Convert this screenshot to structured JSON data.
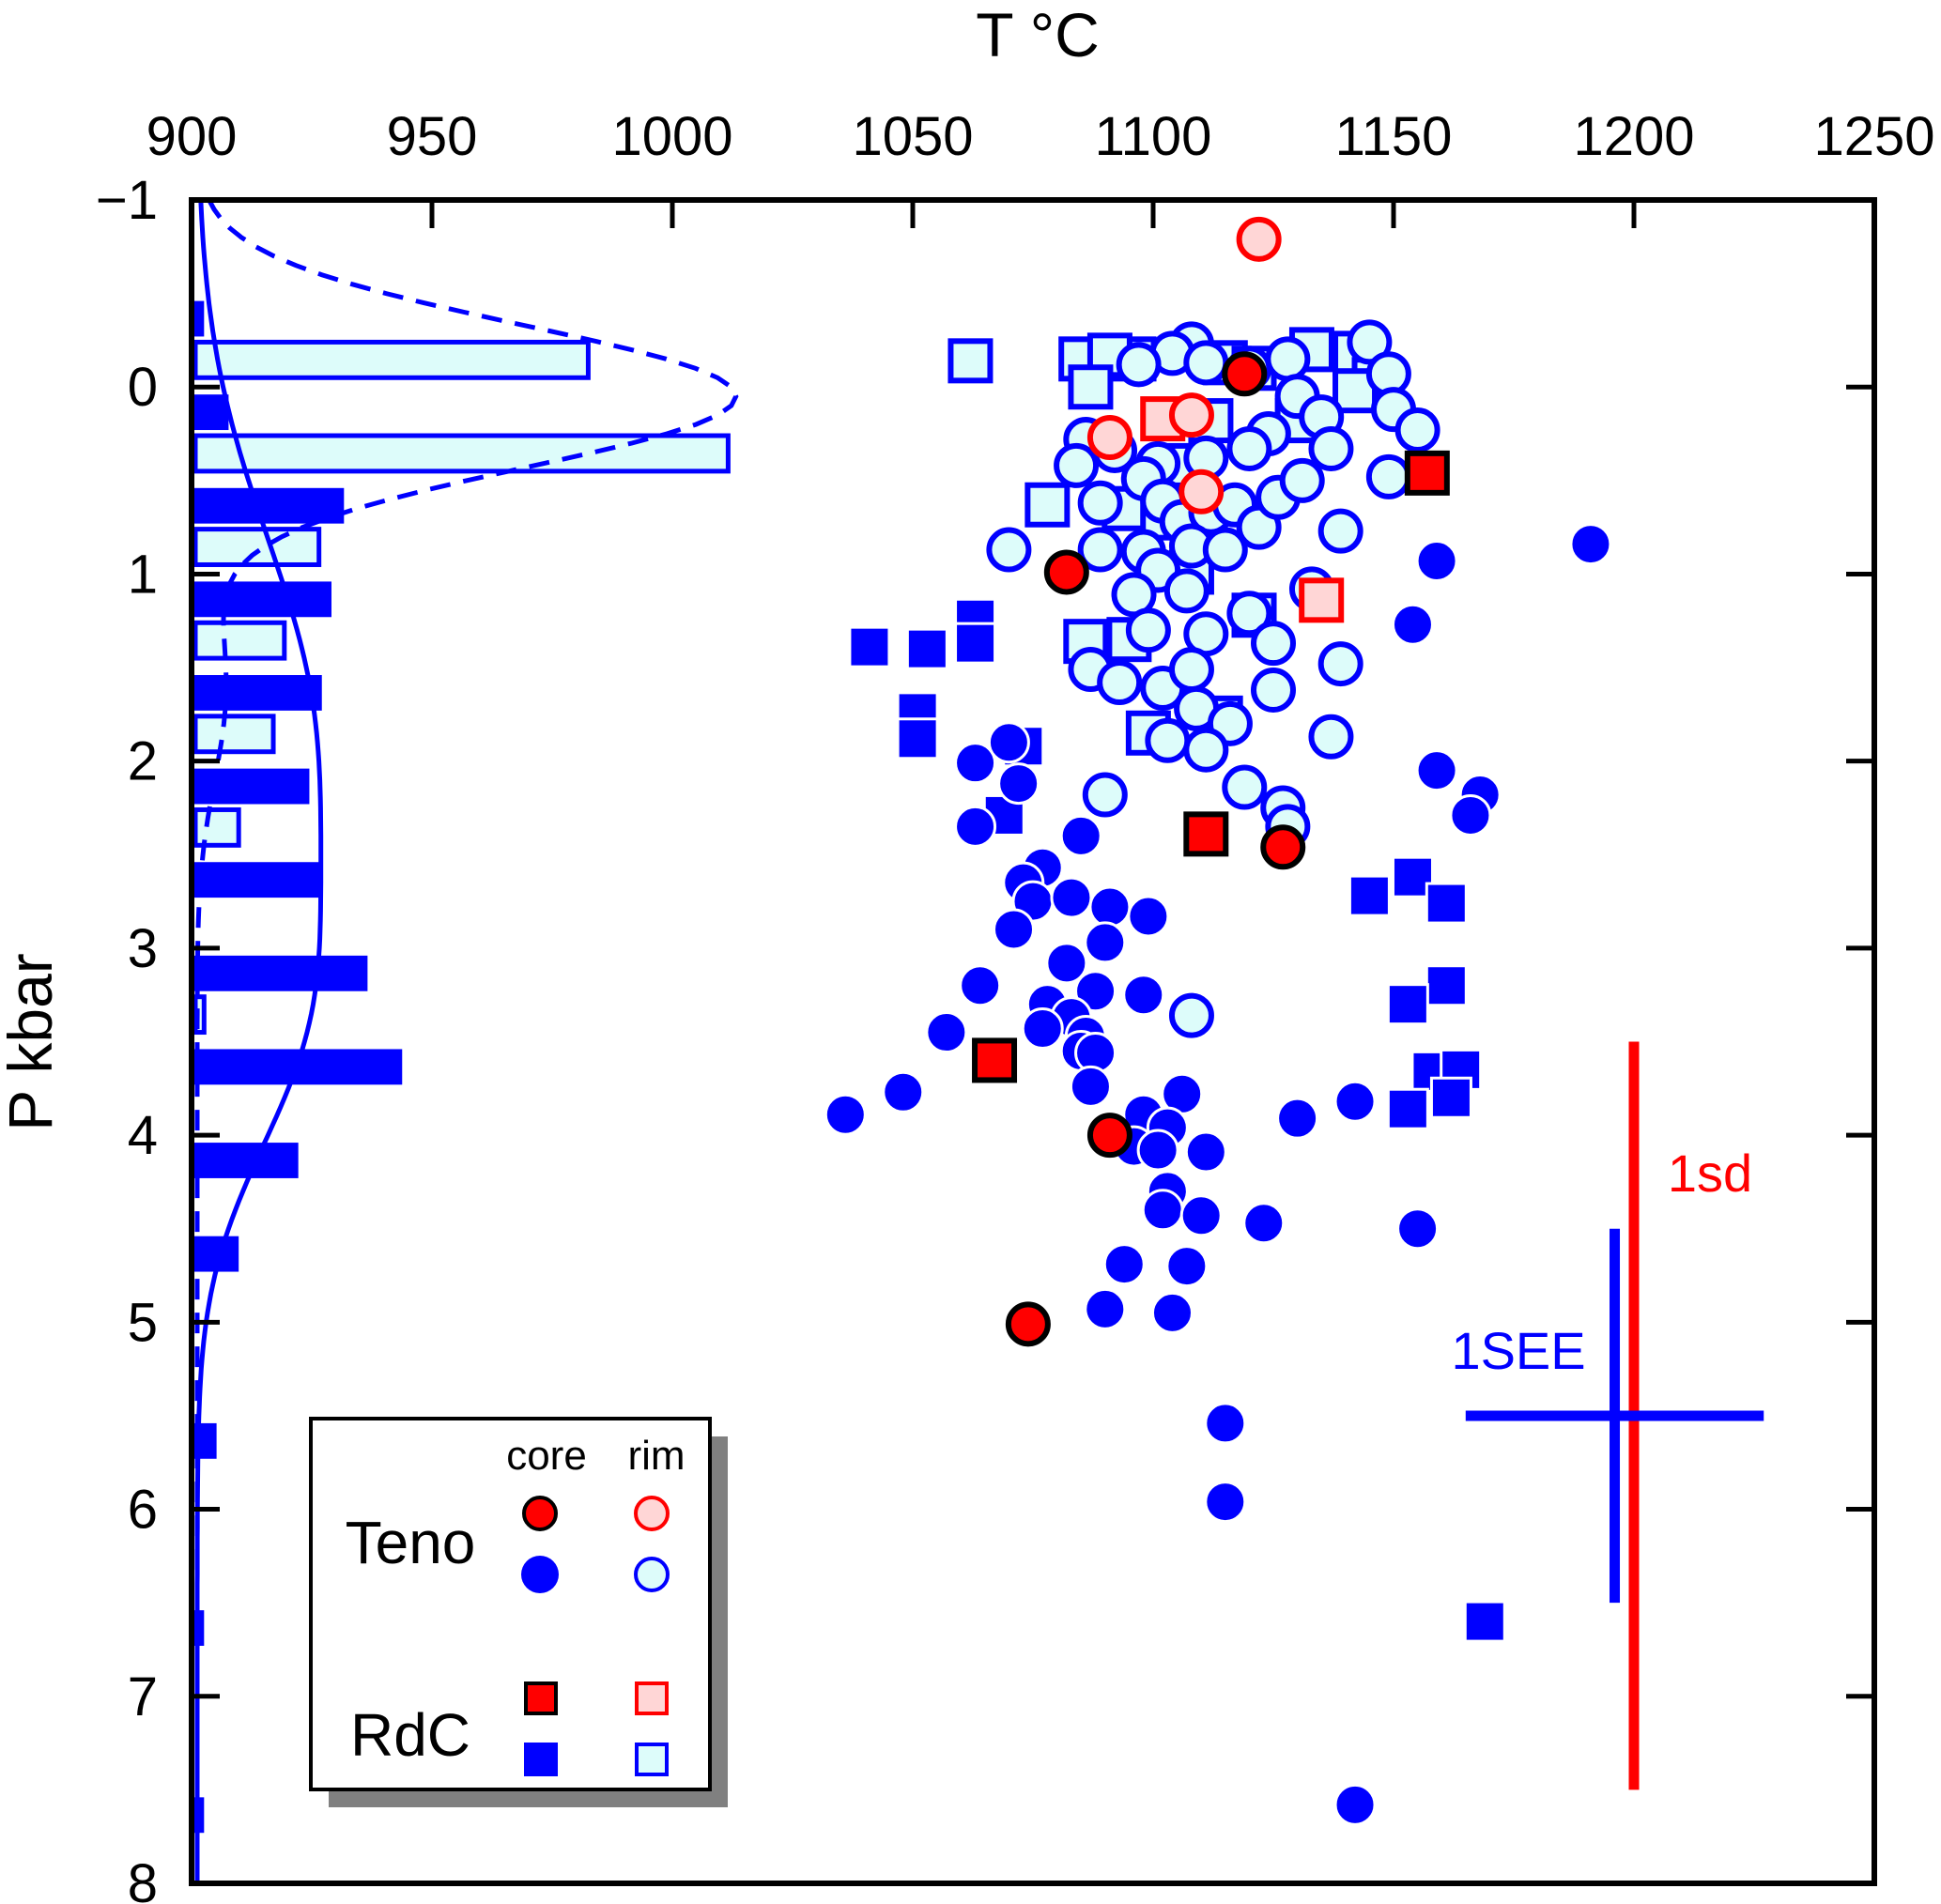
{
  "chart_data": {
    "type": "scatter",
    "title": "",
    "xlabel": "T °C",
    "ylabel": "P kbar",
    "xlim": [
      900,
      1250
    ],
    "ylim": [
      -1,
      8
    ],
    "y_inverted": true,
    "x_axis_position": "top",
    "x_ticks": [
      "900",
      "950",
      "1000",
      "1050",
      "1100",
      "1150",
      "1200",
      "1250"
    ],
    "y_ticks": [
      "−1",
      "0",
      "1",
      "2",
      "3",
      "4",
      "5",
      "6",
      "7",
      "8"
    ],
    "grid": false,
    "colors": {
      "blue": "#0000ff",
      "light_cyan": "#ddfcfa",
      "red": "#ff0000",
      "pink": "#ffd6d6",
      "black": "#000000",
      "shadow": "#808080"
    },
    "legend": {
      "placement": "bottom-left",
      "col_headers": [
        "core",
        "rim"
      ],
      "groups": [
        "Teno",
        "RdC"
      ]
    },
    "series": [
      {
        "name": "Teno core (red)",
        "marker": "circle",
        "fill": "#ff0000",
        "stroke": "#000000",
        "points": [
          [
            1119,
            -0.07
          ],
          [
            1082,
            0.99
          ],
          [
            1127,
            2.46
          ],
          [
            1091,
            4.0
          ],
          [
            1074,
            5.01
          ]
        ]
      },
      {
        "name": "Teno rim (pink)",
        "marker": "circle",
        "fill": "#ffd6d6",
        "stroke": "#ff0000",
        "points": [
          [
            1122,
            -0.79
          ],
          [
            1091,
            0.27
          ],
          [
            1108,
            0.15
          ],
          [
            1110,
            0.56
          ]
        ]
      },
      {
        "name": "RdC core (red)",
        "marker": "square",
        "fill": "#ff0000",
        "stroke": "#000000",
        "points": [
          [
            1157,
            0.46
          ],
          [
            1111,
            2.39
          ],
          [
            1067,
            3.6
          ]
        ]
      },
      {
        "name": "RdC rim (pink)",
        "marker": "square",
        "fill": "#ffd6d6",
        "stroke": "#ff0000",
        "points": [
          [
            1102,
            0.17
          ],
          [
            1135,
            1.14
          ]
        ]
      },
      {
        "name": "Teno core (blue)",
        "marker": "circle",
        "fill": "#0000ff",
        "stroke": "#ffffff",
        "points": [
          [
            1191,
            0.84
          ],
          [
            1159,
            0.93
          ],
          [
            1154,
            1.27
          ],
          [
            1159,
            2.05
          ],
          [
            1168,
            2.18
          ],
          [
            1166,
            2.29
          ],
          [
            1063,
            2.01
          ],
          [
            1070,
            1.9
          ],
          [
            1072,
            2.12
          ],
          [
            1063,
            2.35
          ],
          [
            1085,
            2.4
          ],
          [
            1077,
            2.57
          ],
          [
            1073,
            2.65
          ],
          [
            1075,
            2.75
          ],
          [
            1083,
            2.73
          ],
          [
            1071,
            2.9
          ],
          [
            1091,
            2.78
          ],
          [
            1099,
            2.83
          ],
          [
            1090,
            2.97
          ],
          [
            1064,
            3.2
          ],
          [
            1082,
            3.08
          ],
          [
            1088,
            3.23
          ],
          [
            1057,
            3.45
          ],
          [
            1078,
            3.3
          ],
          [
            1083,
            3.37
          ],
          [
            1086,
            3.47
          ],
          [
            1077,
            3.43
          ],
          [
            1085,
            3.55
          ],
          [
            1088,
            3.56
          ],
          [
            1087,
            3.74
          ],
          [
            1098,
            3.25
          ],
          [
            1036,
            3.89
          ],
          [
            1048,
            3.77
          ],
          [
            1098,
            3.89
          ],
          [
            1106,
            3.78
          ],
          [
            1103,
            3.96
          ],
          [
            1096,
            4.06
          ],
          [
            1101,
            4.08
          ],
          [
            1111,
            4.09
          ],
          [
            1103,
            4.3
          ],
          [
            1102,
            4.4
          ],
          [
            1110,
            4.43
          ],
          [
            1123,
            4.47
          ],
          [
            1130,
            3.91
          ],
          [
            1142,
            3.82
          ],
          [
            1155,
            4.5
          ],
          [
            1094,
            4.69
          ],
          [
            1107,
            4.7
          ],
          [
            1090,
            4.93
          ],
          [
            1104,
            4.95
          ],
          [
            1115,
            5.54
          ],
          [
            1115,
            5.96
          ],
          [
            1142,
            7.58
          ]
        ]
      },
      {
        "name": "Teno rim (light)",
        "marker": "circle",
        "fill": "#ddfcfa",
        "stroke": "#0000ff",
        "points": [
          [
            1108,
            -0.23
          ],
          [
            1104,
            -0.18
          ],
          [
            1097,
            -0.12
          ],
          [
            1111,
            -0.13
          ],
          [
            1120,
            -0.1
          ],
          [
            1128,
            -0.15
          ],
          [
            1145,
            -0.24
          ],
          [
            1149,
            -0.07
          ],
          [
            1150,
            0.12
          ],
          [
            1155,
            0.23
          ],
          [
            1149,
            0.48
          ],
          [
            1130,
            0.05
          ],
          [
            1135,
            0.16
          ],
          [
            1124,
            0.25
          ],
          [
            1120,
            0.33
          ],
          [
            1111,
            0.38
          ],
          [
            1101,
            0.41
          ],
          [
            1092,
            0.34
          ],
          [
            1086,
            0.28
          ],
          [
            1084,
            0.42
          ],
          [
            1089,
            0.62
          ],
          [
            1098,
            0.49
          ],
          [
            1102,
            0.61
          ],
          [
            1106,
            0.72
          ],
          [
            1112,
            0.67
          ],
          [
            1117,
            0.63
          ],
          [
            1122,
            0.75
          ],
          [
            1126,
            0.59
          ],
          [
            1131,
            0.5
          ],
          [
            1137,
            0.33
          ],
          [
            1139,
            0.77
          ],
          [
            1070,
            0.87
          ],
          [
            1089,
            0.87
          ],
          [
            1098,
            0.88
          ],
          [
            1108,
            0.85
          ],
          [
            1115,
            0.87
          ],
          [
            1101,
            0.98
          ],
          [
            1096,
            1.11
          ],
          [
            1107,
            1.09
          ],
          [
            1120,
            1.21
          ],
          [
            1133,
            1.08
          ],
          [
            1125,
            1.37
          ],
          [
            1139,
            1.48
          ],
          [
            1111,
            1.32
          ],
          [
            1099,
            1.3
          ],
          [
            1087,
            1.51
          ],
          [
            1093,
            1.58
          ],
          [
            1102,
            1.61
          ],
          [
            1108,
            1.51
          ],
          [
            1109,
            1.72
          ],
          [
            1116,
            1.8
          ],
          [
            1111,
            1.94
          ],
          [
            1103,
            1.89
          ],
          [
            1125,
            1.62
          ],
          [
            1137,
            1.87
          ],
          [
            1119,
            2.14
          ],
          [
            1127,
            2.25
          ],
          [
            1128,
            2.35
          ],
          [
            1090,
            2.18
          ],
          [
            1108,
            3.36
          ]
        ]
      },
      {
        "name": "RdC core (blue)",
        "marker": "square",
        "fill": "#0000ff",
        "stroke": "#ffffff",
        "points": [
          [
            1041,
            1.39
          ],
          [
            1053,
            1.4
          ],
          [
            1063,
            1.24
          ],
          [
            1063,
            1.37
          ],
          [
            1051,
            1.74
          ],
          [
            1051,
            1.88
          ],
          [
            1073,
            1.92
          ],
          [
            1069,
            2.29
          ],
          [
            1145,
            2.72
          ],
          [
            1154,
            2.62
          ],
          [
            1161,
            2.76
          ],
          [
            1161,
            3.2
          ],
          [
            1153,
            3.3
          ],
          [
            1158,
            3.66
          ],
          [
            1164,
            3.65
          ],
          [
            1162,
            3.8
          ],
          [
            1153,
            3.86
          ],
          [
            1169,
            6.6
          ]
        ]
      },
      {
        "name": "RdC rim (light)",
        "marker": "square",
        "fill": "#ddfcfa",
        "stroke": "#0000ff",
        "points": [
          [
            1062,
            -0.14
          ],
          [
            1085,
            -0.15
          ],
          [
            1096,
            -0.15
          ],
          [
            1091,
            -0.17
          ],
          [
            1087,
            0.0
          ],
          [
            1115,
            -0.13
          ],
          [
            1121,
            -0.1
          ],
          [
            1133,
            -0.2
          ],
          [
            1142,
            -0.18
          ],
          [
            1146,
            -0.04
          ],
          [
            1142,
            0.02
          ],
          [
            1112,
            0.18
          ],
          [
            1130,
            0.18
          ],
          [
            1105,
            0.42
          ],
          [
            1094,
            0.65
          ],
          [
            1102,
            0.7
          ],
          [
            1078,
            0.63
          ],
          [
            1108,
            0.99
          ],
          [
            1121,
            1.22
          ],
          [
            1086,
            1.36
          ],
          [
            1095,
            1.35
          ],
          [
            1099,
            1.85
          ],
          [
            1114,
            1.77
          ]
        ]
      }
    ],
    "histograms": {
      "orientation": "horizontal",
      "bin_width_kbar": 0.5,
      "note_units": "bar length expressed in T axis units beyond 900",
      "core_bins": [
        {
          "p_range": [
            -0.5,
            0
          ],
          "length": 2.6
        },
        {
          "p_range": [
            0,
            0.5
          ],
          "length": 7.7
        },
        {
          "p_range": [
            0.5,
            1
          ],
          "length": 31.7
        },
        {
          "p_range": [
            1,
            1.5
          ],
          "length": 29.1
        },
        {
          "p_range": [
            1.5,
            2
          ],
          "length": 27.1
        },
        {
          "p_range": [
            2,
            2.5
          ],
          "length": 24.5
        },
        {
          "p_range": [
            2.5,
            3
          ],
          "length": 27.1
        },
        {
          "p_range": [
            3,
            3.5
          ],
          "length": 36.6
        },
        {
          "p_range": [
            3.5,
            4
          ],
          "length": 43.8
        },
        {
          "p_range": [
            4,
            4.5
          ],
          "length": 22.2
        },
        {
          "p_range": [
            4.5,
            5
          ],
          "length": 9.8
        },
        {
          "p_range": [
            5.5,
            6
          ],
          "length": 5.2
        },
        {
          "p_range": [
            6.5,
            7
          ],
          "length": 2.6
        },
        {
          "p_range": [
            7.5,
            8
          ],
          "length": 2.6
        }
      ],
      "rim_bins": [
        {
          "p_range": [
            -0.5,
            0
          ],
          "length": 82.5
        },
        {
          "p_range": [
            0,
            0.5
          ],
          "length": 111.6
        },
        {
          "p_range": [
            0.5,
            1
          ],
          "length": 26.5
        },
        {
          "p_range": [
            1,
            1.5
          ],
          "length": 19.3
        },
        {
          "p_range": [
            1.5,
            2
          ],
          "length": 17.0
        },
        {
          "p_range": [
            2,
            2.5
          ],
          "length": 9.8
        },
        {
          "p_range": [
            3,
            3.5
          ],
          "length": 2.6
        }
      ],
      "core_kde": "solid",
      "rim_kde": "dashed"
    },
    "annotations": [
      {
        "text": "1sd",
        "color": "#ff0000",
        "type": "error-bar",
        "center": [
          1200,
          5.5
        ],
        "half_range_p": 2.0
      },
      {
        "text": "1SEE",
        "color": "#0000ff",
        "type": "error-bar",
        "center": [
          1196,
          5.5
        ],
        "half_range_p": 1.0,
        "half_range_t": 31
      }
    ]
  }
}
